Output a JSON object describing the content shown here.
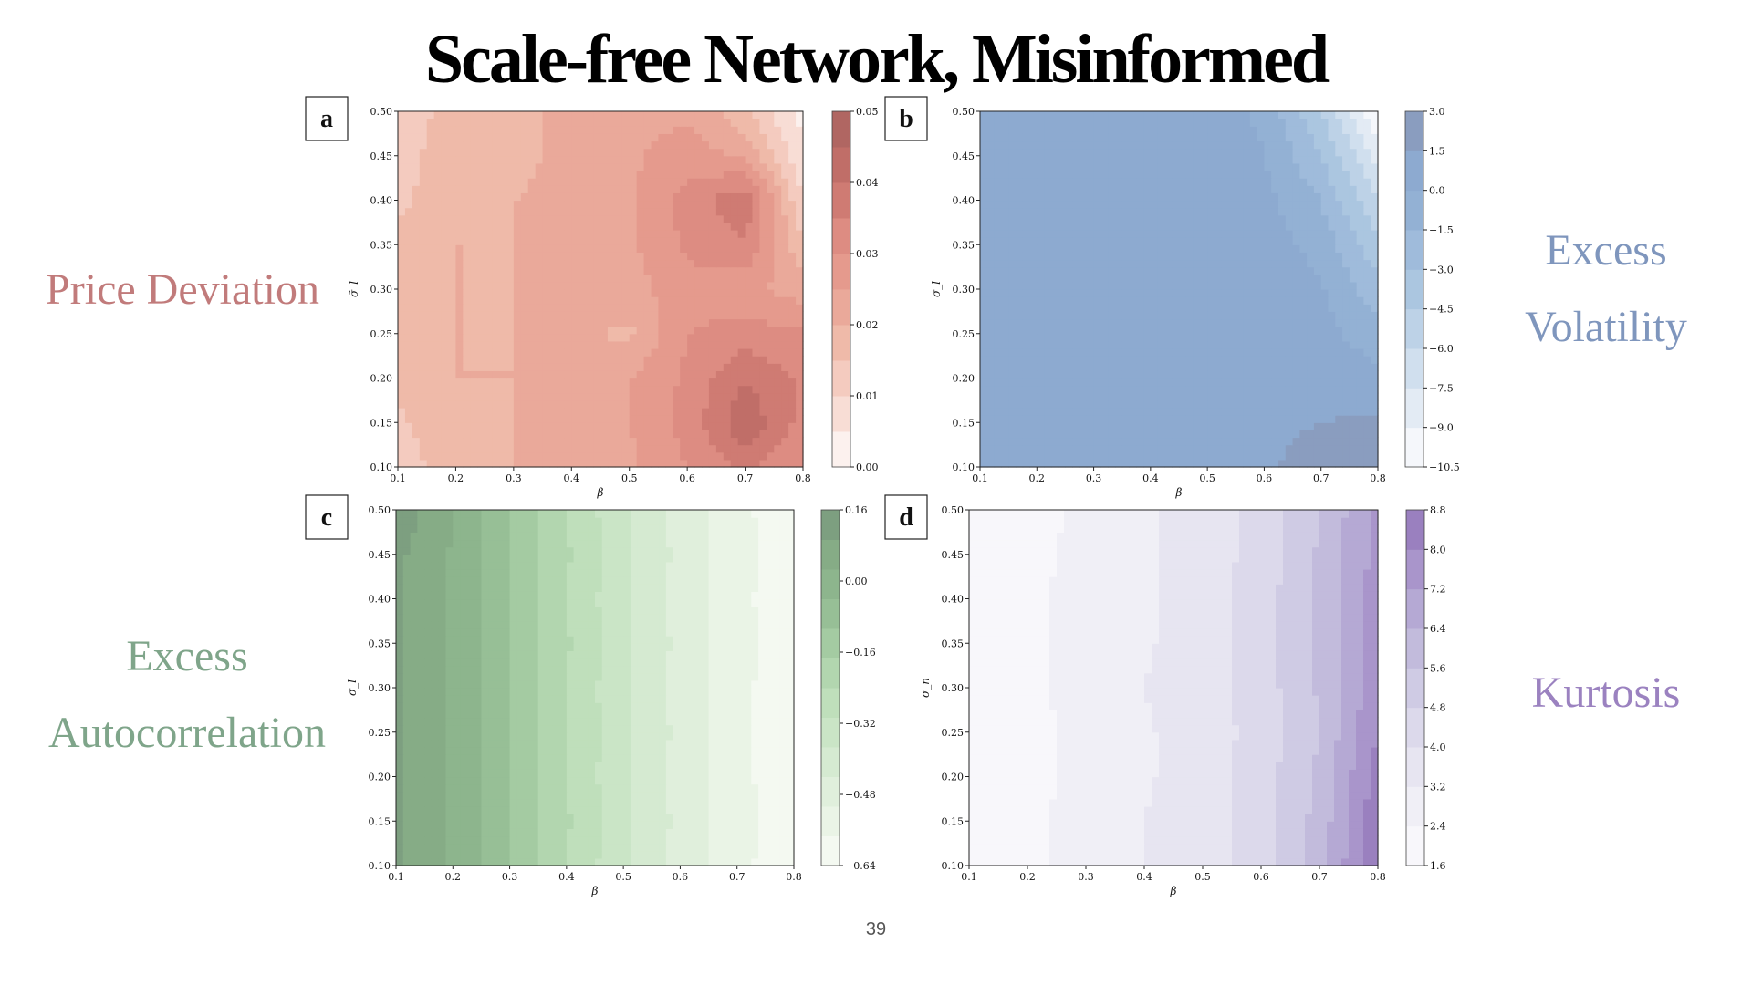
{
  "slide": {
    "title": "Scale-free Network, Misinformed",
    "page_number": "39"
  },
  "labels": {
    "a_line1": "Price Deviation",
    "b_line1": "Excess",
    "b_line2": "Volatility",
    "c_line1": "Excess",
    "c_line2": "Autocorrelation",
    "d_line1": "Kurtosis"
  },
  "colors": {
    "a": "#c17b7b",
    "b": "#7f96bd",
    "c": "#7fa58a",
    "d": "#9b82c0"
  },
  "chart_data": [
    {
      "panel": "a",
      "type": "heatmap",
      "xlabel": "β",
      "ylabel": "σ̃_l",
      "xlim": [
        0.1,
        0.8
      ],
      "ylim": [
        0.1,
        0.5
      ],
      "x_ticks": [
        "0.1",
        "0.2",
        "0.3",
        "0.4",
        "0.5",
        "0.6",
        "0.7",
        "0.8"
      ],
      "y_ticks": [
        "0.10",
        "0.15",
        "0.20",
        "0.25",
        "0.30",
        "0.35",
        "0.40",
        "0.45",
        "0.50"
      ],
      "colorbar_ticks": [
        "0.05",
        "0.04",
        "0.03",
        "0.02",
        "0.01",
        "0.00"
      ],
      "colorbar_range": [
        0.0,
        0.05
      ],
      "levels": 10,
      "colors": [
        "#fcf1ee",
        "#f8ddd5",
        "#f4cbbf",
        "#efbaa9",
        "#eaa99a",
        "#e59a8d",
        "#dd8c82",
        "#cf7b73",
        "#c06e68",
        "#b06662"
      ],
      "x": [
        0.1,
        0.2,
        0.3,
        0.4,
        0.5,
        0.6,
        0.7,
        0.8
      ],
      "y": [
        0.1,
        0.15,
        0.2,
        0.25,
        0.3,
        0.35,
        0.4,
        0.45,
        0.5
      ],
      "z": [
        [
          0.012,
          0.018,
          0.02,
          0.021,
          0.024,
          0.03,
          0.036,
          0.03
        ],
        [
          0.014,
          0.019,
          0.02,
          0.021,
          0.025,
          0.032,
          0.044,
          0.033
        ],
        [
          0.016,
          0.02,
          0.02,
          0.021,
          0.025,
          0.031,
          0.04,
          0.034
        ],
        [
          0.018,
          0.02,
          0.02,
          0.021,
          0.019,
          0.03,
          0.032,
          0.031
        ],
        [
          0.018,
          0.02,
          0.02,
          0.021,
          0.023,
          0.028,
          0.027,
          0.022
        ],
        [
          0.016,
          0.02,
          0.02,
          0.021,
          0.024,
          0.031,
          0.034,
          0.016
        ],
        [
          0.014,
          0.018,
          0.02,
          0.021,
          0.024,
          0.032,
          0.039,
          0.01
        ],
        [
          0.013,
          0.018,
          0.019,
          0.021,
          0.024,
          0.028,
          0.024,
          0.006
        ],
        [
          0.012,
          0.017,
          0.019,
          0.021,
          0.023,
          0.024,
          0.016,
          0.003
        ]
      ]
    },
    {
      "panel": "b",
      "type": "heatmap",
      "xlabel": "β",
      "ylabel": "σ_l",
      "xlim": [
        0.1,
        0.8
      ],
      "ylim": [
        0.1,
        0.5
      ],
      "x_ticks": [
        "0.1",
        "0.2",
        "0.3",
        "0.4",
        "0.5",
        "0.6",
        "0.7",
        "0.8"
      ],
      "y_ticks": [
        "0.10",
        "0.15",
        "0.20",
        "0.25",
        "0.30",
        "0.35",
        "0.40",
        "0.45",
        "0.50"
      ],
      "colorbar_ticks": [
        "3.0",
        "1.5",
        "0.0",
        "−1.5",
        "−3.0",
        "−4.5",
        "−6.0",
        "−7.5",
        "−9.0",
        "−10.5"
      ],
      "colorbar_range": [
        -10.5,
        3.0
      ],
      "levels": 9,
      "colors": [
        "#f5f7fb",
        "#e3ebf4",
        "#d0dfee",
        "#bdd2e7",
        "#abc6e0",
        "#9fbbdb",
        "#93b1d4",
        "#8daad0",
        "#8a9dbf"
      ],
      "x": [
        0.1,
        0.2,
        0.3,
        0.4,
        0.5,
        0.6,
        0.7,
        0.8
      ],
      "y": [
        0.1,
        0.15,
        0.2,
        0.25,
        0.3,
        0.35,
        0.4,
        0.45,
        0.5
      ],
      "z": [
        [
          1.0,
          1.0,
          1.0,
          1.1,
          1.2,
          1.3,
          2.2,
          2.0
        ],
        [
          0.9,
          0.9,
          0.9,
          1.0,
          1.1,
          1.1,
          1.5,
          1.7
        ],
        [
          0.9,
          0.9,
          0.9,
          1.0,
          1.0,
          1.0,
          1.0,
          0.6
        ],
        [
          0.9,
          0.9,
          0.9,
          0.9,
          0.9,
          0.9,
          0.6,
          -1.0
        ],
        [
          0.9,
          0.9,
          0.9,
          0.9,
          0.9,
          0.8,
          0.2,
          -2.5
        ],
        [
          0.9,
          0.9,
          0.9,
          0.9,
          0.9,
          0.7,
          -0.5,
          -4.0
        ],
        [
          0.9,
          0.9,
          0.9,
          0.9,
          0.9,
          0.4,
          -1.5,
          -6.0
        ],
        [
          0.9,
          0.9,
          0.9,
          0.9,
          0.8,
          0.1,
          -3.0,
          -8.0
        ],
        [
          0.9,
          0.9,
          0.9,
          0.9,
          0.7,
          -0.3,
          -4.5,
          -10.5
        ]
      ]
    },
    {
      "panel": "c",
      "type": "heatmap",
      "xlabel": "β",
      "ylabel": "σ_l",
      "xlim": [
        0.1,
        0.8
      ],
      "ylim": [
        0.1,
        0.5
      ],
      "x_ticks": [
        "0.1",
        "0.2",
        "0.3",
        "0.4",
        "0.5",
        "0.6",
        "0.7",
        "0.8"
      ],
      "y_ticks": [
        "0.10",
        "0.15",
        "0.20",
        "0.25",
        "0.30",
        "0.35",
        "0.40",
        "0.45",
        "0.50"
      ],
      "colorbar_ticks": [
        "0.16",
        "0.00",
        "−0.16",
        "−0.32",
        "−0.48",
        "−0.64"
      ],
      "colorbar_range": [
        -0.76,
        0.16
      ],
      "levels": 12,
      "colors": [
        "#f4f9f1",
        "#eaf4e6",
        "#e0efdc",
        "#d5ead1",
        "#cae5c6",
        "#bfdfbb",
        "#b2d6af",
        "#a4cba2",
        "#97bf96",
        "#8db58d",
        "#86ac86",
        "#7d9f80"
      ],
      "x": [
        0.1,
        0.2,
        0.3,
        0.4,
        0.5,
        0.6,
        0.7,
        0.8
      ],
      "y": [
        0.1,
        0.15,
        0.2,
        0.25,
        0.3,
        0.35,
        0.4,
        0.45,
        0.5
      ],
      "z": [
        [
          0.1,
          0.0,
          -0.15,
          -0.3,
          -0.44,
          -0.56,
          -0.66,
          -0.74
        ],
        [
          0.1,
          0.0,
          -0.14,
          -0.29,
          -0.43,
          -0.55,
          -0.65,
          -0.73
        ],
        [
          0.1,
          0.0,
          -0.15,
          -0.3,
          -0.44,
          -0.56,
          -0.66,
          -0.74
        ],
        [
          0.1,
          0.0,
          -0.14,
          -0.3,
          -0.43,
          -0.55,
          -0.66,
          -0.74
        ],
        [
          0.1,
          0.0,
          -0.15,
          -0.3,
          -0.44,
          -0.56,
          -0.66,
          -0.74
        ],
        [
          0.1,
          0.0,
          -0.14,
          -0.29,
          -0.43,
          -0.55,
          -0.65,
          -0.73
        ],
        [
          0.1,
          0.0,
          -0.15,
          -0.3,
          -0.44,
          -0.56,
          -0.66,
          -0.74
        ],
        [
          0.1,
          0.0,
          -0.14,
          -0.29,
          -0.43,
          -0.55,
          -0.65,
          -0.73
        ],
        [
          0.14,
          0.0,
          -0.15,
          -0.3,
          -0.44,
          -0.56,
          -0.66,
          -0.74
        ]
      ]
    },
    {
      "panel": "d",
      "type": "heatmap",
      "xlabel": "β",
      "ylabel": "σ_n",
      "xlim": [
        0.1,
        0.8
      ],
      "ylim": [
        0.1,
        0.5
      ],
      "x_ticks": [
        "0.1",
        "0.2",
        "0.3",
        "0.4",
        "0.5",
        "0.6",
        "0.7",
        "0.8"
      ],
      "y_ticks": [
        "0.10",
        "0.15",
        "0.20",
        "0.25",
        "0.30",
        "0.35",
        "0.40",
        "0.45",
        "0.50"
      ],
      "colorbar_ticks": [
        "8.8",
        "8.0",
        "7.2",
        "6.4",
        "5.6",
        "4.8",
        "4.0",
        "3.2",
        "2.4",
        "1.6"
      ],
      "colorbar_range": [
        1.6,
        8.8
      ],
      "levels": 9,
      "colors": [
        "#f8f7fb",
        "#f0eff6",
        "#e7e5f1",
        "#dcd9eb",
        "#cfcbe4",
        "#c2bbdc",
        "#b5a9d4",
        "#a995cb",
        "#9a80bf"
      ],
      "x": [
        0.1,
        0.2,
        0.3,
        0.4,
        0.5,
        0.6,
        0.7,
        0.8
      ],
      "y": [
        0.1,
        0.15,
        0.2,
        0.25,
        0.3,
        0.35,
        0.4,
        0.45,
        0.5
      ],
      "z": [
        [
          1.8,
          2.2,
          2.7,
          3.2,
          3.6,
          4.5,
          6.0,
          8.8
        ],
        [
          1.8,
          2.2,
          2.7,
          3.2,
          3.6,
          4.4,
          5.9,
          8.6
        ],
        [
          1.8,
          2.2,
          2.6,
          3.1,
          3.6,
          4.4,
          5.8,
          8.4
        ],
        [
          1.8,
          2.2,
          2.6,
          3.1,
          3.6,
          4.3,
          5.6,
          8.0
        ],
        [
          1.8,
          2.2,
          2.7,
          3.2,
          3.6,
          4.4,
          5.7,
          7.8
        ],
        [
          1.8,
          2.2,
          2.7,
          3.1,
          3.6,
          4.4,
          5.8,
          7.6
        ],
        [
          1.8,
          2.2,
          2.7,
          3.1,
          3.6,
          4.4,
          5.8,
          7.6
        ],
        [
          1.8,
          2.2,
          2.6,
          3.1,
          3.6,
          4.3,
          5.7,
          7.5
        ],
        [
          1.8,
          2.1,
          2.6,
          3.1,
          3.5,
          4.3,
          5.6,
          7.4
        ]
      ]
    }
  ]
}
